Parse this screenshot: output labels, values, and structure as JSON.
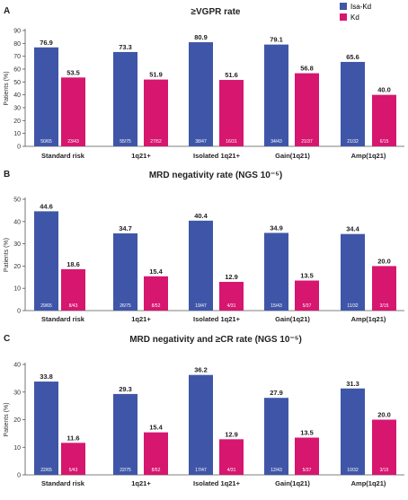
{
  "legend": {
    "placement": "top-right",
    "items": [
      {
        "label": "Isa-Kd",
        "color": "#3f56a8"
      },
      {
        "label": "Kd",
        "color": "#d6166f"
      }
    ]
  },
  "colors": {
    "isa_kd": "#3f56a8",
    "kd": "#d6166f",
    "axis": "#555555",
    "text": "#222222"
  },
  "chart_data": [
    {
      "type": "bar",
      "panel_letter": "A",
      "title": "≥VGPR rate",
      "ylabel": "Patients (%)",
      "ylim": [
        0,
        90
      ],
      "yticks": [
        0,
        10,
        20,
        30,
        40,
        50,
        60,
        70,
        80,
        90
      ],
      "categories": [
        "Standard risk",
        "1q21+",
        "Isolated 1q21+",
        "Gain(1q21)",
        "Amp(1q21)"
      ],
      "series": [
        {
          "name": "Isa-Kd",
          "values": [
            76.9,
            73.3,
            80.9,
            79.1,
            65.6
          ],
          "counts": [
            "50/65",
            "55/75",
            "38/47",
            "34/43",
            "21/32"
          ]
        },
        {
          "name": "Kd",
          "values": [
            53.5,
            51.9,
            51.6,
            56.8,
            40.0
          ],
          "counts": [
            "23/43",
            "27/52",
            "16/31",
            "21/37",
            "6/15"
          ]
        }
      ],
      "value_labels": [
        [
          "76.9",
          "73.3",
          "80.9",
          "79.1",
          "65.6"
        ],
        [
          "53.5",
          "51.9",
          "51.6",
          "56.8",
          "40.0"
        ]
      ]
    },
    {
      "type": "bar",
      "panel_letter": "B",
      "title": "MRD negativity rate (NGS 10⁻⁵)",
      "ylabel": "Patients (%)",
      "ylim": [
        0,
        50
      ],
      "yticks": [
        0,
        10,
        20,
        30,
        40,
        50
      ],
      "categories": [
        "Standard risk",
        "1q21+",
        "Isolated 1q21+",
        "Gain(1q21)",
        "Amp(1q21)"
      ],
      "series": [
        {
          "name": "Isa-Kd",
          "values": [
            44.6,
            34.7,
            40.4,
            34.9,
            34.4
          ],
          "counts": [
            "29/65",
            "26/75",
            "19/47",
            "15/43",
            "11/32"
          ]
        },
        {
          "name": "Kd",
          "values": [
            18.6,
            15.4,
            12.9,
            13.5,
            20.0
          ],
          "counts": [
            "8/43",
            "8/52",
            "4/31",
            "5/37",
            "3/15"
          ]
        }
      ],
      "value_labels": [
        [
          "44.6",
          "34.7",
          "40.4",
          "34.9",
          "34.4"
        ],
        [
          "18.6",
          "15.4",
          "12.9",
          "13.5",
          "20.0"
        ]
      ]
    },
    {
      "type": "bar",
      "panel_letter": "C",
      "title": "MRD negativity and ≥CR rate (NGS 10⁻⁵)",
      "ylabel": "Patients (%)",
      "ylim": [
        0,
        40
      ],
      "yticks": [
        0,
        10,
        20,
        30,
        40
      ],
      "categories": [
        "Standard risk",
        "1q21+",
        "Isolated 1q21+",
        "Gain(1q21)",
        "Amp(1q21)"
      ],
      "series": [
        {
          "name": "Isa-Kd",
          "values": [
            33.8,
            29.3,
            36.2,
            27.9,
            31.3
          ],
          "counts": [
            "22/65",
            "22/75",
            "17/47",
            "12/43",
            "10/32"
          ]
        },
        {
          "name": "Kd",
          "values": [
            11.6,
            15.4,
            12.9,
            13.5,
            20.0
          ],
          "counts": [
            "5/43",
            "8/52",
            "4/31",
            "5/37",
            "3/15"
          ]
        }
      ],
      "value_labels": [
        [
          "33.8",
          "29.3",
          "36.2",
          "27.9",
          "31.3"
        ],
        [
          "11.6",
          "15.4",
          "12.9",
          "13.5",
          "20.0"
        ]
      ]
    }
  ]
}
